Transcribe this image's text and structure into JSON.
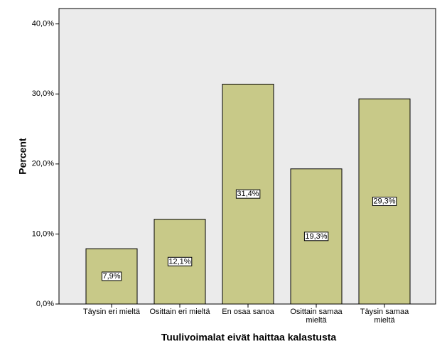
{
  "chart_data": {
    "type": "bar",
    "x_label": "Tuulivoimalat eivät haittaa kalastusta",
    "y_label": "Percent",
    "categories": [
      "Täysin eri mieltä",
      "Osittain eri mieltä",
      "En osaa sanoa",
      "Osittain samaa mieltä",
      "Täysin samaa mieltä"
    ],
    "values": [
      7.9,
      12.1,
      31.4,
      19.3,
      29.3
    ],
    "value_labels": [
      "7,9%",
      "12,1%",
      "31,4%",
      "19,3%",
      "29,3%"
    ],
    "color": "#c8c988",
    "ylim": [
      0,
      42.2
    ],
    "yticks": [
      {
        "value": 0,
        "label": "0,0%"
      },
      {
        "value": 10,
        "label": "10,0%"
      },
      {
        "value": 20,
        "label": "20,0%"
      },
      {
        "value": 30,
        "label": "30,0%"
      },
      {
        "value": 40,
        "label": "40,0%"
      }
    ]
  }
}
